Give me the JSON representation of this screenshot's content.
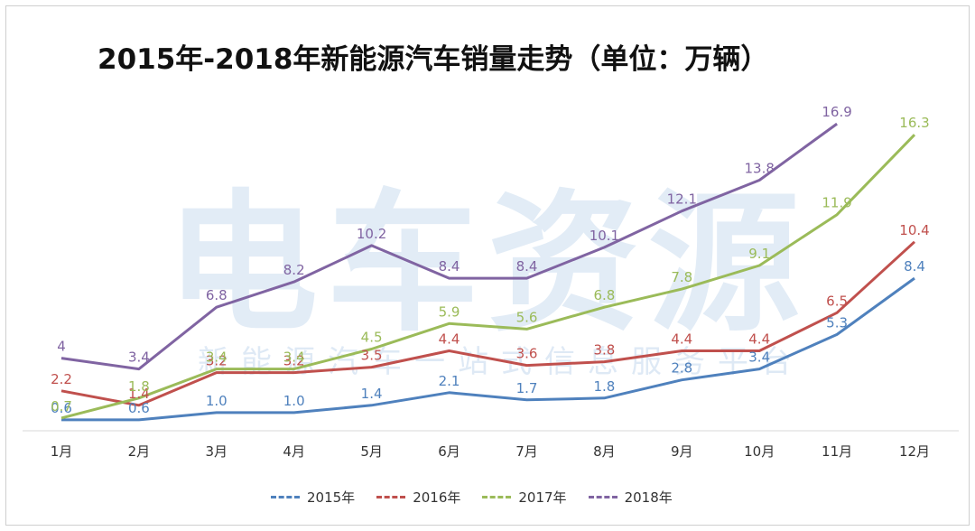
{
  "title": "2015年-2018年新能源汽车销量走势（单位：万辆）",
  "watermark": {
    "main": "电车资源",
    "sub": "新能源汽车一站式信息服务平台",
    "color": "#4a87c5"
  },
  "chart_data": {
    "type": "line",
    "title": "2015年-2018年新能源汽车销量走势（单位：万辆）",
    "categories": [
      "1月",
      "2月",
      "3月",
      "4月",
      "5月",
      "6月",
      "7月",
      "8月",
      "9月",
      "10月",
      "11月",
      "12月"
    ],
    "ylim": [
      0,
      18
    ],
    "grid": false,
    "legend_position": "bottom",
    "series": [
      {
        "name": "2015年",
        "color": "#4f81bd",
        "values": [
          0.6,
          0.6,
          1.0,
          1.0,
          1.4,
          2.1,
          1.7,
          1.8,
          2.8,
          3.4,
          5.3,
          8.4
        ],
        "labels": [
          "0.6",
          "0.6",
          "1.0",
          "1.0",
          "1.4",
          "2.1",
          "1.7",
          "1.8",
          "2.8",
          "3.4",
          "5.3",
          "8.4"
        ]
      },
      {
        "name": "2016年",
        "color": "#c0504d",
        "values": [
          2.2,
          1.4,
          3.2,
          3.2,
          3.5,
          4.4,
          3.6,
          3.8,
          4.4,
          4.4,
          6.5,
          10.4
        ],
        "labels": [
          "2.2",
          "1.4",
          "3.2",
          "3.2",
          "3.5",
          "4.4",
          "3.6",
          "3.8",
          "4.4",
          "4.4",
          "6.5",
          "10.4"
        ]
      },
      {
        "name": "2017年",
        "color": "#9bbb59",
        "values": [
          0.7,
          1.8,
          3.4,
          3.4,
          4.5,
          5.9,
          5.6,
          6.8,
          7.8,
          9.1,
          11.9,
          16.3
        ],
        "labels": [
          "0.7",
          "1.8",
          "3.4",
          "3.4",
          "4.5",
          "5.9",
          "5.6",
          "6.8",
          "7.8",
          "9.1",
          "11.9",
          "16.3"
        ]
      },
      {
        "name": "2018年",
        "color": "#8064a2",
        "values": [
          4,
          3.4,
          6.8,
          8.2,
          10.2,
          8.4,
          8.4,
          10.1,
          12.1,
          13.8,
          16.9,
          null
        ],
        "labels": [
          "4",
          "3.4",
          "6.8",
          "8.2",
          "10.2",
          "8.4",
          "8.4",
          "10.1",
          "12.1",
          "13.8",
          "16.9",
          ""
        ]
      }
    ]
  }
}
